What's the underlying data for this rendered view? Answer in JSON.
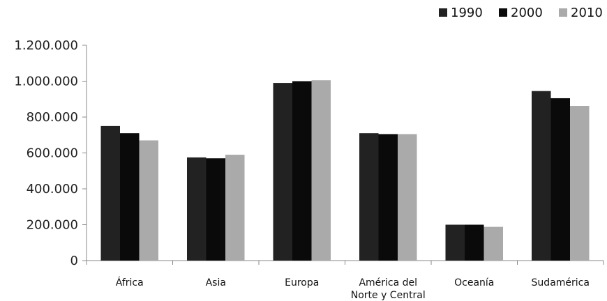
{
  "chart_data": {
    "type": "bar",
    "title": "",
    "xlabel": "",
    "ylabel": "",
    "categories": [
      [
        "África"
      ],
      [
        "Asia"
      ],
      [
        "Europa"
      ],
      [
        "América del",
        "Norte y Central"
      ],
      [
        "Oceanía"
      ],
      [
        "Sudamérica"
      ]
    ],
    "series": [
      {
        "name": "1990",
        "color": "#222222",
        "values": [
          750000,
          575000,
          990000,
          710000,
          200000,
          945000
        ]
      },
      {
        "name": "2000",
        "color": "#0a0a0a",
        "values": [
          710000,
          570000,
          1000000,
          705000,
          200000,
          905000
        ]
      },
      {
        "name": "2010",
        "color": "#aaaaaa",
        "values": [
          670000,
          590000,
          1005000,
          705000,
          188000,
          862000
        ]
      }
    ],
    "ylim": [
      0,
      1200000
    ],
    "yticks": [
      {
        "value": 0,
        "label": "0"
      },
      {
        "value": 200000,
        "label": "200.000"
      },
      {
        "value": 400000,
        "label": "400.000"
      },
      {
        "value": 600000,
        "label": "600.000"
      },
      {
        "value": 800000,
        "label": "800.000"
      },
      {
        "value": 1000000,
        "label": "1.000.000"
      },
      {
        "value": 1200000,
        "label": "1.200.000"
      }
    ],
    "grid": false,
    "legend_position": "top-right"
  }
}
